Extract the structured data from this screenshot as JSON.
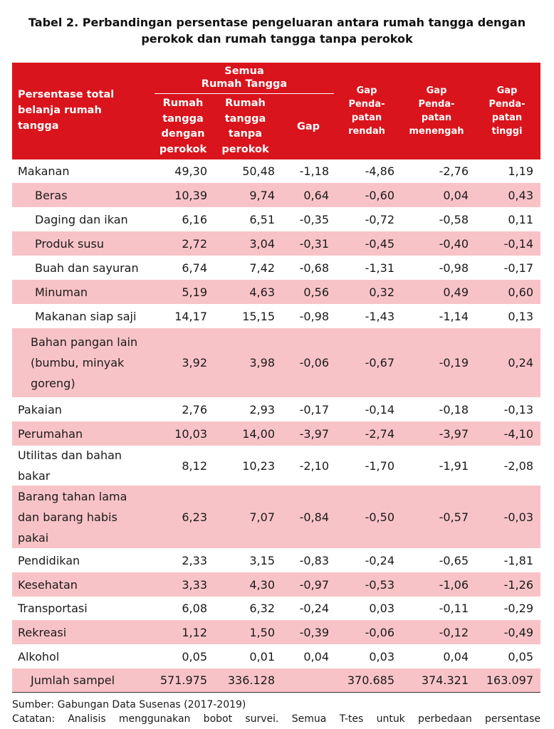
{
  "title": {
    "line1": "Tabel 2. Perbandingan persentase pengeluaran antara rumah tangga dengan",
    "line2": "perokok dan rumah tangga tanpa perokok"
  },
  "header": {
    "first_col": [
      "Persentase total",
      "belanja rumah",
      "tangga"
    ],
    "group_label": [
      "Semua",
      "Rumah Tangga"
    ],
    "col1": [
      "Rumah",
      "tangga",
      "dengan",
      "perokok"
    ],
    "col2": [
      "Rumah",
      "tangga",
      "tanpa",
      "perokok"
    ],
    "col3": "Gap",
    "col4": [
      "Gap",
      "Penda-",
      "patan",
      "rendah"
    ],
    "col5": [
      "Gap",
      "Penda-",
      "patan",
      "menengah"
    ],
    "col6": [
      "Gap",
      "Penda-",
      "patan",
      "tinggi"
    ]
  },
  "rows": [
    {
      "label": [
        "Makanan"
      ],
      "indent": "",
      "pink": false,
      "h": 33,
      "values": [
        "49,30",
        "50,48",
        "-1,18",
        "-4,86",
        "-2,76",
        "1,19"
      ]
    },
    {
      "label": [
        "Beras"
      ],
      "indent": "sub",
      "pink": true,
      "h": 34,
      "values": [
        "10,39",
        "9,74",
        "0,64",
        "-0,60",
        "0,04",
        "0,43"
      ]
    },
    {
      "label": [
        "Daging dan ikan"
      ],
      "indent": "sub",
      "pink": false,
      "h": 34,
      "values": [
        "6,16",
        "6,51",
        "-0,35",
        "-0,72",
        "-0,58",
        "0,11"
      ]
    },
    {
      "label": [
        "Produk susu"
      ],
      "indent": "sub",
      "pink": true,
      "h": 34,
      "values": [
        "2,72",
        "3,04",
        "-0,31",
        "-0,45",
        "-0,40",
        "-0,14"
      ]
    },
    {
      "label": [
        "Buah dan sayuran"
      ],
      "indent": "sub",
      "pink": false,
      "h": 34,
      "values": [
        "6,74",
        "7,42",
        "-0,68",
        "-1,31",
        "-0,98",
        "-0,17"
      ]
    },
    {
      "label": [
        "Minuman"
      ],
      "indent": "sub",
      "pink": true,
      "h": 34,
      "values": [
        "5,19",
        "4,63",
        "0,56",
        "0,32",
        "0,49",
        "0,60"
      ]
    },
    {
      "label": [
        "Makanan siap saji"
      ],
      "indent": "sub",
      "pink": false,
      "h": 34,
      "values": [
        "14,17",
        "15,15",
        "-0,98",
        "-1,43",
        "-1,14",
        "0,13"
      ]
    },
    {
      "label": [
        "Bahan pangan lain",
        "(bumbu, minyak",
        "goreng)"
      ],
      "indent": "sub2",
      "pink": true,
      "h": 97,
      "values": [
        "3,92",
        "3,98",
        "-0,06",
        "-0,67",
        "-0,19",
        "0,24"
      ]
    },
    {
      "label": [
        "Pakaian"
      ],
      "indent": "",
      "pink": false,
      "h": 34,
      "values": [
        "2,76",
        "2,93",
        "-0,17",
        "-0,14",
        "-0,18",
        "-0,13"
      ]
    },
    {
      "label": [
        "Perumahan"
      ],
      "indent": "",
      "pink": true,
      "h": 34,
      "values": [
        "10,03",
        "14,00",
        "-3,97",
        "-2,74",
        "-3,97",
        "-4,10"
      ]
    },
    {
      "label": [
        "Utilitas dan bahan",
        "bakar"
      ],
      "indent": "",
      "pink": false,
      "h": 56,
      "values": [
        "8,12",
        "10,23",
        "-2,10",
        "-1,70",
        "-1,91",
        "-2,08"
      ]
    },
    {
      "label": [
        "Barang tahan lama",
        "dan barang habis",
        "pakai"
      ],
      "indent": "",
      "pink": true,
      "h": 88,
      "values": [
        "6,23",
        "7,07",
        "-0,84",
        "-0,50",
        "-0,57",
        "-0,03"
      ]
    },
    {
      "label": [
        "Pendidikan"
      ],
      "indent": "",
      "pink": false,
      "h": 34,
      "values": [
        "2,33",
        "3,15",
        "-0,83",
        "-0,24",
        "-0,65",
        "-1,81"
      ]
    },
    {
      "label": [
        "Kesehatan"
      ],
      "indent": "",
      "pink": true,
      "h": 34,
      "values": [
        "3,33",
        "4,30",
        "-0,97",
        "-0,53",
        "-1,06",
        "-1,26"
      ]
    },
    {
      "label": [
        "Transportasi"
      ],
      "indent": "",
      "pink": false,
      "h": 33,
      "values": [
        "6,08",
        "6,32",
        "-0,24",
        "0,03",
        "-0,11",
        "-0,29"
      ]
    },
    {
      "label": [
        "Rekreasi"
      ],
      "indent": "",
      "pink": true,
      "h": 34,
      "values": [
        "1,12",
        "1,50",
        "-0,39",
        "-0,06",
        "-0,12",
        "-0,49"
      ]
    },
    {
      "label": [
        "Alkohol"
      ],
      "indent": "",
      "pink": false,
      "h": 34,
      "values": [
        "0,05",
        "0,01",
        "0,04",
        "0,03",
        "0,04",
        "0,05"
      ]
    },
    {
      "label": [
        "Jumlah sampel"
      ],
      "indent": "sub2",
      "pink": true,
      "h": 33,
      "values": [
        "571.975",
        "336.128",
        "",
        "370.685",
        "374.321",
        "163.097"
      ]
    }
  ],
  "footer": {
    "source": "Sumber: Gabungan Data Susenas (2017-2019)",
    "note": "Catatan: Analisis menggunakan bobot survei. Semua T-tes untuk perbedaan persentase"
  }
}
